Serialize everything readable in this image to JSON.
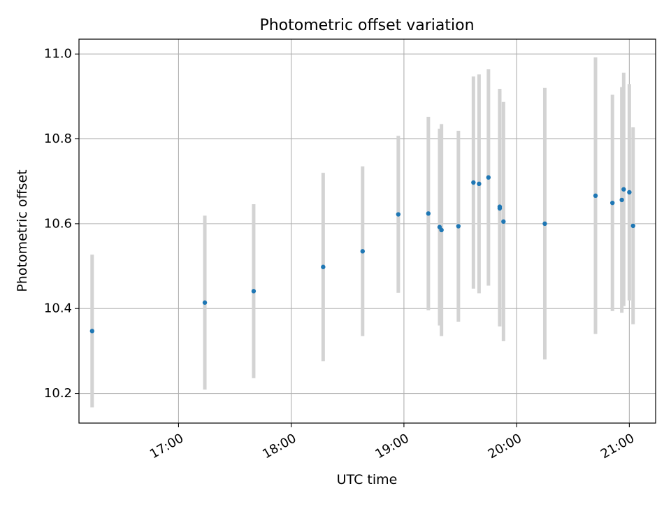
{
  "chart_data": {
    "type": "scatter",
    "title": "Photometric offset variation",
    "xlabel": "UTC time",
    "ylabel": "Photometric offset",
    "xlim": [
      "16:07",
      "21:14"
    ],
    "ylim": [
      10.13,
      11.035
    ],
    "x_ticks": [
      "17:00",
      "18:00",
      "19:00",
      "20:00",
      "21:00"
    ],
    "y_ticks": [
      "10.2",
      "10.4",
      "10.6",
      "10.8",
      "11.0"
    ],
    "grid": true,
    "errorbar_color": "#d3d3d3",
    "point_color": "#1f77b4",
    "points": [
      {
        "x": "16:14",
        "y": 10.347,
        "err": 0.18
      },
      {
        "x": "17:14",
        "y": 10.414,
        "err": 0.205
      },
      {
        "x": "17:40",
        "y": 10.441,
        "err": 0.205
      },
      {
        "x": "18:17",
        "y": 10.498,
        "err": 0.222
      },
      {
        "x": "18:38",
        "y": 10.535,
        "err": 0.2
      },
      {
        "x": "18:57",
        "y": 10.622,
        "err": 0.185
      },
      {
        "x": "19:13",
        "y": 10.624,
        "err": 0.228
      },
      {
        "x": "19:19",
        "y": 10.592,
        "err": 0.232
      },
      {
        "x": "19:20",
        "y": 10.585,
        "err": 0.25
      },
      {
        "x": "19:29",
        "y": 10.594,
        "err": 0.225
      },
      {
        "x": "19:37",
        "y": 10.697,
        "err": 0.25
      },
      {
        "x": "19:40",
        "y": 10.694,
        "err": 0.258
      },
      {
        "x": "19:45",
        "y": 10.709,
        "err": 0.255
      },
      {
        "x": "19:51",
        "y": 10.64,
        "err": 0.278
      },
      {
        "x": "19:51",
        "y": 10.636,
        "err": 0.278
      },
      {
        "x": "19:53",
        "y": 10.605,
        "err": 0.282
      },
      {
        "x": "20:15",
        "y": 10.6,
        "err": 0.32
      },
      {
        "x": "20:42",
        "y": 10.666,
        "err": 0.326
      },
      {
        "x": "20:51",
        "y": 10.649,
        "err": 0.255
      },
      {
        "x": "20:56",
        "y": 10.656,
        "err": 0.266
      },
      {
        "x": "20:57",
        "y": 10.681,
        "err": 0.275
      },
      {
        "x": "21:00",
        "y": 10.674,
        "err": 0.255
      },
      {
        "x": "21:02",
        "y": 10.595,
        "err": 0.232
      }
    ]
  }
}
